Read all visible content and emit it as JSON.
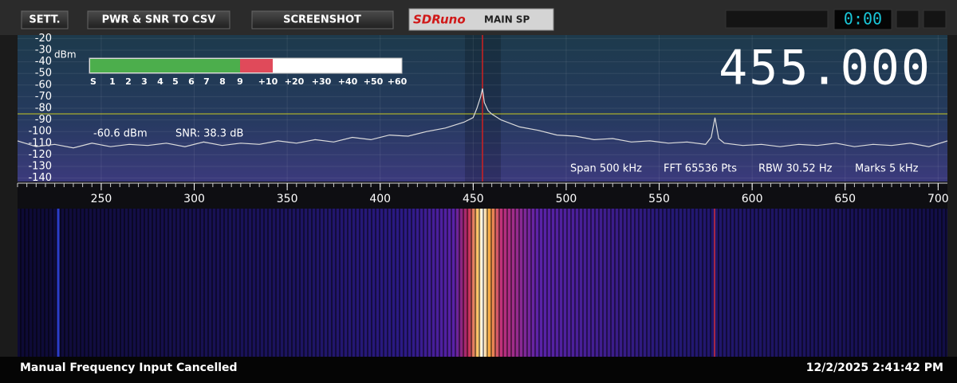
{
  "toolbar": {
    "buttons": [
      "SETT.",
      "PWR & SNR TO CSV",
      "SCREENSHOT"
    ],
    "logo": "SDRuno",
    "panel": "MAIN SP",
    "clock": "0:00"
  },
  "frequency": "455.000",
  "smeter": {
    "unit": "dBm",
    "scale": [
      "S",
      "1",
      "2",
      "3",
      "4",
      "5",
      "6",
      "7",
      "8",
      "9",
      "+10",
      "+20",
      "+30",
      "+40",
      "+50",
      "+60"
    ],
    "level": "-60.6 dBm",
    "snr": "SNR: 38.3 dB"
  },
  "spectrum": {
    "x": [
      205,
      215,
      225,
      235,
      245,
      255,
      265,
      275,
      285,
      295,
      305,
      315,
      325,
      335,
      345,
      355,
      365,
      375,
      385,
      395,
      405,
      415,
      425,
      435,
      445,
      450,
      452,
      454,
      455,
      456,
      458,
      460,
      465,
      475,
      485,
      495,
      505,
      515,
      525,
      535,
      545,
      555,
      565,
      575,
      578,
      580,
      582,
      585,
      595,
      605,
      615,
      625,
      635,
      645,
      655,
      665,
      675,
      685,
      695,
      705
    ],
    "values": [
      -108,
      -113,
      -111,
      -114,
      -110,
      -113,
      -111,
      -112,
      -110,
      -113,
      -109,
      -112,
      -110,
      -111,
      -108,
      -110,
      -107,
      -109,
      -105,
      -107,
      -103,
      -104,
      -100,
      -97,
      -92,
      -88,
      -80,
      -70,
      -63,
      -75,
      -82,
      -85,
      -90,
      -96,
      -99,
      -103,
      -104,
      -107,
      -106,
      -109,
      -108,
      -110,
      -109,
      -111,
      -105,
      -88,
      -106,
      -110,
      -112,
      -111,
      -113,
      -111,
      -112,
      -110,
      -113,
      -111,
      -112,
      -110,
      -113,
      -108
    ],
    "xlim": [
      205,
      705
    ],
    "ylim": [
      -143,
      -17
    ],
    "xticks": [
      250,
      300,
      350,
      400,
      450,
      500,
      550,
      600,
      650,
      700
    ],
    "yticks": [
      -20,
      -30,
      -40,
      -50,
      -60,
      -70,
      -80,
      -90,
      -100,
      -110,
      -120,
      -130,
      -140
    ],
    "info": [
      "Span 500 kHz",
      "FFT 65536 Pts",
      "RBW 30.52 Hz",
      "Marks 5 kHz"
    ]
  },
  "status": {
    "message": "Manual Frequency Input Cancelled",
    "datetime": "12/2/2025 2:41:42 PM"
  }
}
